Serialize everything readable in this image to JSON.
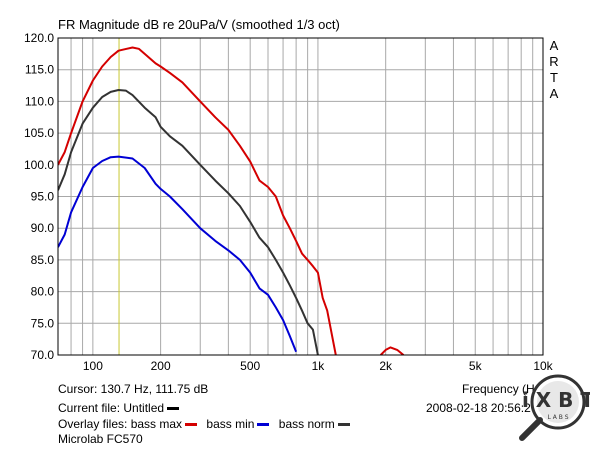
{
  "title": "FR Magnitude dB re 20uPa/V (smoothed 1/3 oct)",
  "brand_side": [
    "A",
    "R",
    "T",
    "A"
  ],
  "cursor_text": "Cursor: 130.7 Hz, 111.75 dB",
  "frequency_label": "Frequency (Hz)",
  "current_file_text": "Current file: Untitled",
  "overlay_prefix": "Overlay files:",
  "overlays": [
    {
      "label": "bass max",
      "color": "#d40000"
    },
    {
      "label": "bass min",
      "color": "#0000d4"
    },
    {
      "label": "bass norm",
      "color": "#333333"
    }
  ],
  "current_swatch_color": "#000000",
  "model_text": "Microlab FC570",
  "datetime_text": "2008-02-18   20:56:26",
  "logo_text": "iXBT LABS",
  "colors": {
    "grid": "#a8a8a8",
    "cursor": "#c8c832",
    "frame": "#000000"
  },
  "chart_data": {
    "type": "line",
    "title": "FR Magnitude dB re 20uPa/V (smoothed 1/3 oct)",
    "xlabel": "Frequency (Hz)",
    "ylabel": "",
    "x_scale": "log",
    "xlim": [
      70,
      10000
    ],
    "ylim": [
      70,
      120
    ],
    "x_ticks": [
      100,
      200,
      500,
      1000,
      2000,
      5000,
      10000
    ],
    "x_tick_labels": [
      "100",
      "200",
      "500",
      "1k",
      "2k",
      "5k",
      "10k"
    ],
    "y_ticks": [
      70,
      75,
      80,
      85,
      90,
      95,
      100,
      105,
      110,
      115,
      120
    ],
    "y_tick_labels": [
      "70.0",
      "75.0",
      "80.0",
      "85.0",
      "90.0",
      "95.0",
      "100.0",
      "105.0",
      "110.0",
      "115.0",
      "120.0"
    ],
    "grid": true,
    "cursor_x": 130.7,
    "series": [
      {
        "name": "bass max",
        "color": "#d40000",
        "x": [
          70,
          75,
          80,
          90,
          100,
          110,
          120,
          130,
          150,
          160,
          170,
          190,
          200,
          220,
          250,
          300,
          350,
          400,
          450,
          500,
          550,
          600,
          650,
          700,
          750,
          800,
          850,
          900,
          950,
          1000,
          1050,
          1100,
          1200
        ],
        "y": [
          100,
          102,
          105,
          110,
          113.3,
          115.5,
          117,
          118,
          118.5,
          118.3,
          117.5,
          116,
          115.5,
          114.5,
          113,
          110,
          107.5,
          105.5,
          103,
          100.5,
          97.5,
          96.5,
          95,
          92,
          90,
          88,
          86,
          85,
          84,
          83,
          79,
          77,
          70
        ]
      },
      {
        "name": "bass min",
        "color": "#0000d4",
        "x": [
          70,
          75,
          80,
          90,
          100,
          110,
          120,
          130,
          150,
          170,
          190,
          200,
          220,
          250,
          300,
          350,
          400,
          450,
          500,
          550,
          600,
          650,
          700,
          750,
          800
        ],
        "y": [
          87,
          89,
          92.5,
          96.5,
          99.5,
          100.6,
          101.2,
          101.3,
          101,
          99.5,
          97,
          96.2,
          95,
          93,
          90,
          88,
          86.5,
          85,
          83,
          80.5,
          79.5,
          77.5,
          75.5,
          73,
          70.5
        ]
      },
      {
        "name": "bass norm",
        "color": "#333333",
        "x": [
          70,
          75,
          80,
          90,
          100,
          110,
          120,
          130,
          140,
          150,
          170,
          190,
          200,
          220,
          250,
          300,
          350,
          400,
          450,
          500,
          550,
          600,
          650,
          700,
          750,
          800,
          850,
          900,
          950,
          1000
        ],
        "y": [
          96,
          98.5,
          102,
          106.5,
          109,
          110.7,
          111.5,
          111.8,
          111.7,
          111,
          109,
          107.5,
          106,
          104.5,
          103,
          100,
          97.5,
          95.5,
          93.5,
          91,
          88.5,
          87,
          85,
          83,
          81,
          79,
          77,
          75,
          74,
          70
        ]
      }
    ],
    "extra_segment": {
      "series": "bass max",
      "x": [
        1900,
        2000,
        2100,
        2250,
        2400
      ],
      "y": [
        70,
        70.8,
        71.2,
        70.8,
        70
      ]
    }
  }
}
